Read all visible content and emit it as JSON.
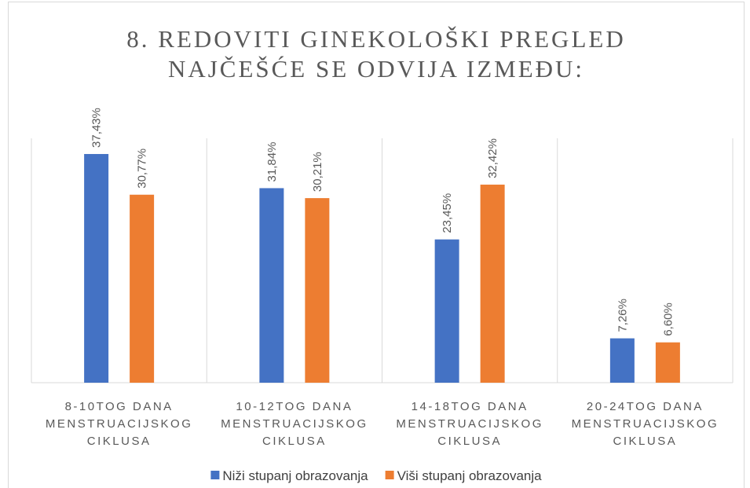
{
  "chart_data": {
    "type": "bar",
    "title": "8. REDOVITI GINEKOLOŠKI PREGLED\nNAJČEŠĆE SE ODVIJA IZMEĐU:",
    "categories": [
      "8-10TOG DANA\nMENSTRUACIJSKOG\nCIKLUSA",
      "10-12TOG DANA\nMENSTRUACIJSKOG\nCIKLUSA",
      "14-18TOG DANA\nMENSTRUACIJSKOG\nCIKLUSA",
      "20-24TOG DANA\nMENSTRUACIJSKOG\nCIKLUSA"
    ],
    "series": [
      {
        "name": "Niži stupanj obrazovanja",
        "color": "#4472c4",
        "values": [
          37.43,
          31.84,
          23.45,
          7.26
        ],
        "value_labels": [
          "37,43%",
          "31,84%",
          "23,45%",
          "7,26%"
        ]
      },
      {
        "name": "Viši stupanj obrazovanja",
        "color": "#ed7d31",
        "values": [
          30.77,
          30.21,
          32.42,
          6.6
        ],
        "value_labels": [
          "30,77%",
          "30,21%",
          "32,42%",
          "6,60%"
        ]
      }
    ],
    "ylim": [
      0,
      40
    ],
    "legend": "bottom"
  }
}
